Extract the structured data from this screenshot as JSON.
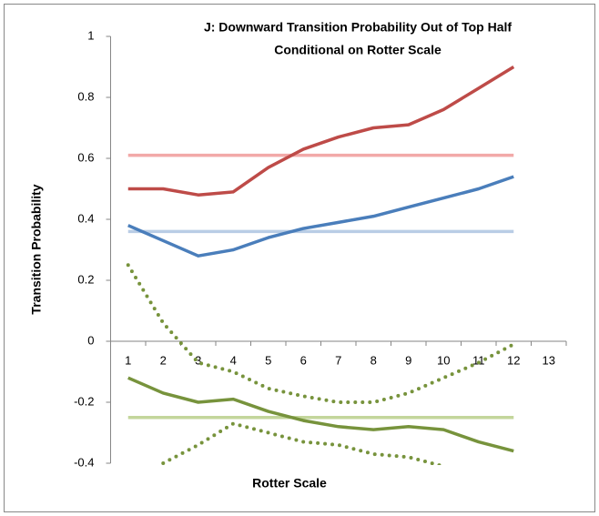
{
  "chart_data": {
    "type": "line",
    "title": [
      "J: Downward Transition Probability Out of Top Half",
      "Conditional on Rotter Scale"
    ],
    "x_label": "Rotter Scale",
    "y_label": "Transition Probability",
    "categories": [
      "1",
      "2",
      "3",
      "4",
      "5",
      "6",
      "7",
      "8",
      "9",
      "10",
      "11",
      "12",
      "13"
    ],
    "ylim": [
      -0.4,
      1
    ],
    "yticks": [
      -0.4,
      -0.2,
      0,
      0.2,
      0.4,
      0.6,
      0.8,
      1
    ],
    "series": [
      {
        "color": "#f2a9a8",
        "style": "solid",
        "values": [
          0.61,
          0.61,
          0.61,
          0.61,
          0.61,
          0.61,
          0.61,
          0.61,
          0.61,
          0.61,
          0.61,
          0.61,
          null
        ]
      },
      {
        "color": "#b9cde5",
        "style": "solid",
        "values": [
          0.36,
          0.36,
          0.36,
          0.36,
          0.36,
          0.36,
          0.36,
          0.36,
          0.36,
          0.36,
          0.36,
          0.36,
          null
        ]
      },
      {
        "color": "#c3d69b",
        "style": "solid",
        "values": [
          -0.25,
          -0.25,
          -0.25,
          -0.25,
          -0.25,
          -0.25,
          -0.25,
          -0.25,
          -0.25,
          -0.25,
          -0.25,
          -0.25,
          null
        ]
      },
      {
        "color": "#be4b48",
        "style": "solid",
        "values": [
          0.5,
          0.5,
          0.48,
          0.49,
          0.57,
          0.63,
          0.67,
          0.7,
          0.71,
          0.76,
          0.83,
          0.9,
          null
        ]
      },
      {
        "color": "#4a7ebb",
        "style": "solid",
        "values": [
          0.38,
          0.33,
          0.28,
          0.3,
          0.34,
          0.37,
          0.39,
          0.41,
          0.44,
          0.47,
          0.5,
          0.54,
          null
        ]
      },
      {
        "color": "#77933c",
        "style": "solid",
        "values": [
          -0.12,
          -0.17,
          -0.2,
          -0.19,
          -0.23,
          -0.26,
          -0.28,
          -0.29,
          -0.28,
          -0.29,
          -0.33,
          -0.36,
          null
        ]
      },
      {
        "color": "#77933c",
        "style": "dotted",
        "values": [
          0.25,
          0.06,
          -0.07,
          -0.1,
          -0.155,
          -0.18,
          -0.2,
          -0.2,
          -0.17,
          -0.12,
          -0.07,
          -0.01,
          null
        ]
      },
      {
        "color": "#77933c",
        "style": "dotted",
        "values": [
          null,
          -0.4,
          -0.34,
          -0.27,
          -0.3,
          -0.33,
          -0.34,
          -0.37,
          -0.38,
          -0.41,
          null,
          null,
          null
        ]
      }
    ]
  }
}
